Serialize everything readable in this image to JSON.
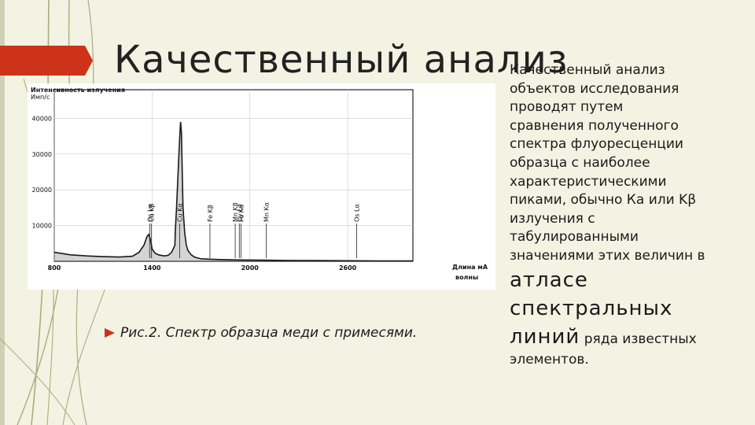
{
  "slide": {
    "title": "Качественный анализ",
    "body_lines": [
      "Качественный анализ",
      "объектов исследования",
      "проводят путем",
      "сравнения полученного",
      "спектра флуоресценции",
      "образца с наиболее",
      "характеристическими",
      "пиками, обычно Ка или Kβ",
      "излучения с",
      "табулированными",
      "значениями этих величин в"
    ],
    "body_big_1": "атласе",
    "body_big_2": "спектральных",
    "body_big_3": "линий",
    "body_tail_1": " ряда известных",
    "body_tail_2": "элементов.",
    "caption": "Рис.2. Спектр образца меди с примесями."
  },
  "colors": {
    "accent": "#cc3318",
    "background": "#f3f3e3",
    "deco_lines": "#a8ad7d",
    "body_text": "#1a1a1a"
  },
  "icons": {
    "bullet": "arrow-bullet-icon"
  },
  "chart_data": {
    "type": "line",
    "ylabel": "Интенсивность излучения",
    "yunit": "Имп/с",
    "xlabel_1": "Длина мА",
    "xlabel_2": "волны",
    "xlim": [
      800,
      3000
    ],
    "ylim": [
      0,
      48000
    ],
    "yticks": [
      "10000",
      "20000",
      "30000",
      "40000"
    ],
    "xticks": [
      "800",
      "1400",
      "2000",
      "2600"
    ],
    "grid": true,
    "series": [
      {
        "x": [
          800,
          900,
          1000,
          1100,
          1200,
          1280,
          1320,
          1350,
          1370,
          1380,
          1390,
          1400,
          1410,
          1420,
          1440,
          1460,
          1480,
          1500,
          1520,
          1540,
          1542,
          1550,
          1560,
          1570,
          1575,
          1580,
          1585,
          1590,
          1600,
          1610,
          1620,
          1640,
          1660,
          1680,
          1700,
          1750,
          1800,
          1900,
          2000,
          2100,
          2200,
          2400,
          2600,
          2800,
          3000
        ],
        "y": [
          2500,
          1800,
          1500,
          1300,
          1200,
          1400,
          2500,
          4500,
          7000,
          7500,
          6000,
          3500,
          2800,
          2200,
          1800,
          1600,
          1500,
          1700,
          2500,
          4500,
          8000,
          15000,
          25000,
          35000,
          39000,
          36000,
          25000,
          15000,
          8000,
          4500,
          3000,
          1800,
          1200,
          900,
          700,
          600,
          500,
          400,
          350,
          300,
          250,
          200,
          150,
          100,
          100
        ]
      }
    ],
    "annotations": [
      {
        "label": "Os Lα",
        "x": 1385
      },
      {
        "label": "Cu Kβ",
        "x": 1395
      },
      {
        "label": "Cu Kα",
        "x": 1570
      },
      {
        "label": "Fe Kβ",
        "x": 1755
      },
      {
        "label": "Mn Kβ",
        "x": 1910
      },
      {
        "label": "Dy Lα",
        "x": 1935
      },
      {
        "label": "Fe Kα",
        "x": 1945
      },
      {
        "label": "Mn Kα",
        "x": 2101
      },
      {
        "label": "Os Lα",
        "x": 2655
      }
    ]
  }
}
